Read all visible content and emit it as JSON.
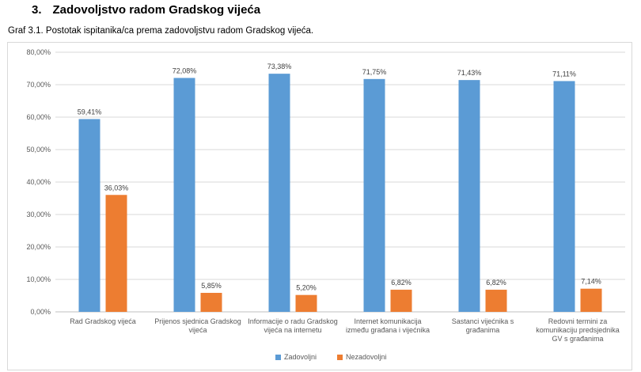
{
  "heading": {
    "number": "3.",
    "text": "Zadovoljstvo radom Gradskog vijeća"
  },
  "caption": "Graf 3.1. Postotak ispitanika/ca prema zadovoljstvu radom Gradskog vijeća.",
  "chart_data": {
    "type": "bar",
    "title": "",
    "xlabel": "",
    "ylabel": "",
    "ylim": [
      0,
      80
    ],
    "yticks": [
      "0,00%",
      "10,00%",
      "20,00%",
      "30,00%",
      "40,00%",
      "50,00%",
      "60,00%",
      "70,00%",
      "80,00%"
    ],
    "grid": true,
    "legend_position": "bottom",
    "categories": [
      [
        "Rad Gradskog vijeća"
      ],
      [
        "Prijenos sjednica Gradskog",
        "vijeća"
      ],
      [
        "Informacije o radu Gradskog",
        "vijeća na internetu"
      ],
      [
        "Internet komunikacija",
        "između građana i vijećnika"
      ],
      [
        "Sastanci vijećnika s",
        "građanima"
      ],
      [
        "Redovni termini za",
        "komunikaciju predsjednika",
        "GV s građanima"
      ]
    ],
    "series": [
      {
        "name": "Zadovoljni",
        "color": "#5b9bd5",
        "values": [
          59.41,
          72.08,
          73.38,
          71.75,
          71.43,
          71.11
        ],
        "labels": [
          "59,41%",
          "72,08%",
          "73,38%",
          "71,75%",
          "71,43%",
          "71,11%"
        ]
      },
      {
        "name": "Nezadovoljni",
        "color": "#ed7d31",
        "values": [
          36.03,
          5.85,
          5.2,
          6.82,
          6.82,
          7.14
        ],
        "labels": [
          "36,03%",
          "5,85%",
          "5,20%",
          "6,82%",
          "6,82%",
          "7,14%"
        ]
      }
    ]
  }
}
